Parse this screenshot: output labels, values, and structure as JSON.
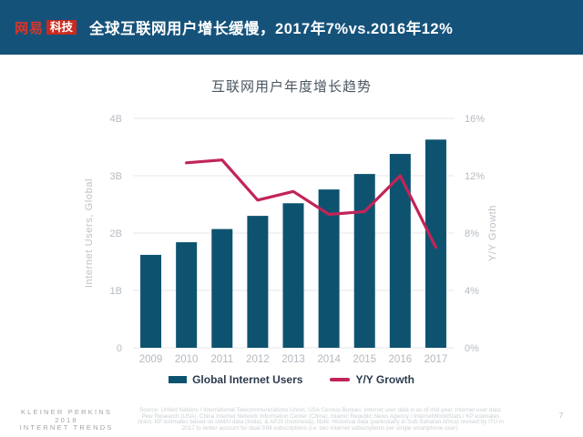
{
  "header": {
    "logo_brand": "网易",
    "logo_sub": "科技",
    "title": "全球互联网用户增长缓慢，2017年7%vs.2016年12%"
  },
  "chart_data": {
    "type": "bar",
    "title": "互联网用户年度增长趋势",
    "categories": [
      "2009",
      "2010",
      "2011",
      "2012",
      "2013",
      "2014",
      "2015",
      "2016",
      "2017"
    ],
    "series": [
      {
        "name": "Global Internet Users",
        "type": "bar",
        "axis": "left",
        "unit": "B",
        "values": [
          1.62,
          1.84,
          2.07,
          2.3,
          2.52,
          2.76,
          3.03,
          3.38,
          3.63
        ],
        "color": "#0d5370"
      },
      {
        "name": "Y/Y Growth",
        "type": "line",
        "axis": "right",
        "unit": "%",
        "values": [
          null,
          12.9,
          13.1,
          10.3,
          10.9,
          9.3,
          9.5,
          12.0,
          7.0
        ],
        "color": "#c22458"
      }
    ],
    "left_axis": {
      "label": "Internet Users, Global",
      "ticks": [
        "0",
        "1B",
        "2B",
        "3B",
        "4B"
      ],
      "min": 0,
      "max": 4
    },
    "right_axis": {
      "label": "Y/Y Growth",
      "ticks": [
        "0%",
        "4%",
        "8%",
        "12%",
        "16%"
      ],
      "min": 0,
      "max": 16
    },
    "grid": true,
    "legend_position": "bottom"
  },
  "legend": {
    "items": [
      {
        "label": "Global Internet Users",
        "color": "#0d5370",
        "shape": "rect"
      },
      {
        "label": "Y/Y Growth",
        "color": "#c22458",
        "shape": "line"
      }
    ]
  },
  "footer": {
    "brand_lines": [
      "KLEINER PERKINS",
      "2018",
      "INTERNET TRENDS"
    ],
    "source": "Source: United Nations / International Telecommunications Union, USA Census Bureau. Internet user data is as of mid-year. Internet user data: Pew Research (USA), China Internet Network Information Center (China), Islamic Republic News Agency / InternetWorldStats / KP estimates (Iran). KP estimates based on IAMAI data (India), & APJII (Indonesia). Note: Historical data (particularly in Sub-Saharan Africa) revised by ITU in 2017 to better account for dual-SIM subscriptions (i.e. two Internet subscriptions per single smartphone user).",
    "page_number": "7"
  },
  "colors": {
    "header_bg": "#15527a",
    "brand_red": "#cc2a20",
    "bar_blue": "#0d5370",
    "line_crimson": "#c22458"
  }
}
